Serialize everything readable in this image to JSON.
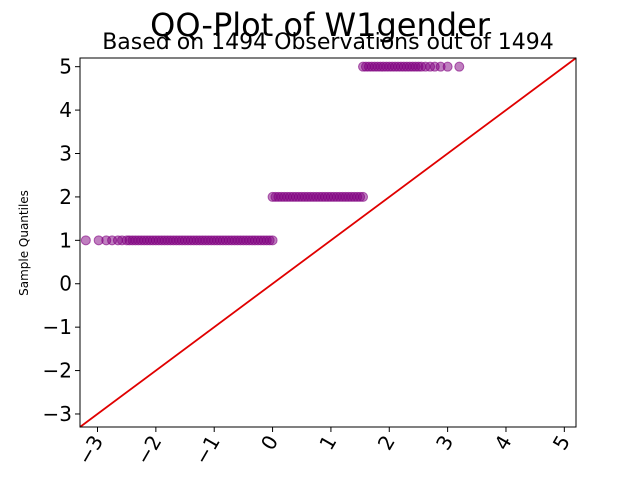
{
  "chart_data": {
    "type": "scatter",
    "title": "QQ-Plot of W1gender",
    "subtitle": "Based on 1494 Observations out of 1494",
    "xlabel": "",
    "ylabel": "Sample Quantiles",
    "xlim": [
      -3.3,
      5.2
    ],
    "ylim": [
      -3.3,
      5.2
    ],
    "xticks": [
      "−3",
      "−2",
      "−1",
      "0",
      "1",
      "2",
      "3",
      "4",
      "5"
    ],
    "yticks": [
      "−3",
      "−2",
      "−1",
      "0",
      "1",
      "2",
      "3",
      "4",
      "5"
    ],
    "xtick_values": [
      -3,
      -2,
      -1,
      0,
      1,
      2,
      3,
      4,
      5
    ],
    "ytick_values": [
      -3,
      -2,
      -1,
      0,
      1,
      2,
      3,
      4,
      5
    ],
    "grid": false,
    "reference_line": {
      "from": [
        -3.3,
        -3.3
      ],
      "to": [
        5.2,
        5.2
      ]
    },
    "colors": {
      "points": "#800080",
      "reference_line": "#e00000"
    },
    "series": [
      {
        "y": 1,
        "x": [
          -3.2,
          -2.98,
          -2.85,
          -2.75,
          -2.65,
          -2.58,
          -2.5,
          -2.45,
          -2.4,
          -2.35,
          -2.3,
          -2.25,
          -2.2,
          -2.15,
          -2.1,
          -2.05,
          -2.0,
          -1.95,
          -1.9,
          -1.85,
          -1.8,
          -1.75,
          -1.7,
          -1.65,
          -1.6,
          -1.55,
          -1.5,
          -1.45,
          -1.4,
          -1.35,
          -1.3,
          -1.25,
          -1.2,
          -1.15,
          -1.1,
          -1.05,
          -1.0,
          -0.95,
          -0.9,
          -0.85,
          -0.8,
          -0.75,
          -0.7,
          -0.65,
          -0.6,
          -0.55,
          -0.5,
          -0.45,
          -0.4,
          -0.35,
          -0.3,
          -0.25,
          -0.2,
          -0.15,
          -0.1,
          -0.05,
          0.0
        ]
      },
      {
        "y": 2,
        "x": [
          0.0,
          0.05,
          0.1,
          0.15,
          0.2,
          0.25,
          0.3,
          0.35,
          0.4,
          0.45,
          0.5,
          0.55,
          0.6,
          0.65,
          0.7,
          0.75,
          0.8,
          0.85,
          0.9,
          0.95,
          1.0,
          1.05,
          1.1,
          1.15,
          1.2,
          1.25,
          1.3,
          1.35,
          1.4,
          1.45,
          1.5,
          1.55
        ]
      },
      {
        "y": 5,
        "x": [
          1.55,
          1.6,
          1.65,
          1.7,
          1.75,
          1.8,
          1.85,
          1.9,
          1.95,
          2.0,
          2.05,
          2.1,
          2.15,
          2.2,
          2.25,
          2.3,
          2.35,
          2.4,
          2.45,
          2.5,
          2.55,
          2.62,
          2.7,
          2.78,
          2.88,
          3.0,
          3.2
        ]
      }
    ]
  }
}
